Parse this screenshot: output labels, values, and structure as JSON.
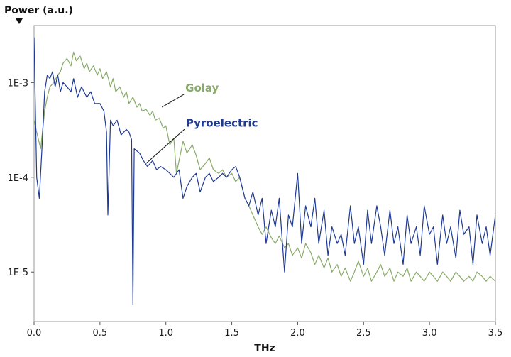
{
  "chart_data": {
    "type": "line",
    "title": "",
    "xlabel": "THz",
    "ylabel": "Power (a.u.)",
    "xlim": [
      0,
      3.5
    ],
    "ylim": [
      3e-06,
      0.004
    ],
    "yscale": "log",
    "x_ticks": [
      0.0,
      0.5,
      1.0,
      1.5,
      2.0,
      2.5,
      3.0,
      3.5
    ],
    "x_tick_labels": [
      "0.0",
      "0.5",
      "1.0",
      "1.5",
      "2.0",
      "2.5",
      "3.0",
      "3.5"
    ],
    "y_ticks": [
      1e-05,
      0.0001,
      0.001
    ],
    "y_tick_labels": [
      "1E-5",
      "1E-4",
      "1E-3"
    ],
    "grid": false,
    "legend": "annotations",
    "series": [
      {
        "name": "Golay",
        "color": "#88aa68",
        "label_anchor": [
          0.97,
          0.00055
        ],
        "x": [
          0.0,
          0.02,
          0.05,
          0.08,
          0.1,
          0.12,
          0.15,
          0.18,
          0.2,
          0.22,
          0.25,
          0.28,
          0.3,
          0.32,
          0.35,
          0.38,
          0.4,
          0.42,
          0.45,
          0.48,
          0.5,
          0.52,
          0.55,
          0.58,
          0.6,
          0.62,
          0.65,
          0.68,
          0.7,
          0.72,
          0.75,
          0.78,
          0.8,
          0.82,
          0.85,
          0.88,
          0.9,
          0.92,
          0.95,
          0.98,
          1.0,
          1.03,
          1.06,
          1.08,
          1.1,
          1.13,
          1.16,
          1.2,
          1.23,
          1.26,
          1.3,
          1.33,
          1.36,
          1.4,
          1.43,
          1.46,
          1.5,
          1.53,
          1.56,
          1.6,
          1.63,
          1.66,
          1.7,
          1.73,
          1.76,
          1.8,
          1.83,
          1.86,
          1.9,
          1.93,
          1.96,
          2.0,
          2.03,
          2.06,
          2.1,
          2.13,
          2.16,
          2.2,
          2.23,
          2.26,
          2.3,
          2.33,
          2.36,
          2.4,
          2.43,
          2.46,
          2.5,
          2.53,
          2.56,
          2.6,
          2.63,
          2.66,
          2.7,
          2.73,
          2.76,
          2.8,
          2.83,
          2.86,
          2.9,
          2.93,
          2.96,
          3.0,
          3.03,
          3.06,
          3.1,
          3.13,
          3.16,
          3.2,
          3.23,
          3.26,
          3.3,
          3.33,
          3.36,
          3.4,
          3.43,
          3.46,
          3.5
        ],
        "values": [
          0.0004,
          0.0003,
          0.0002,
          0.0005,
          0.0007,
          0.0009,
          0.001,
          0.0012,
          0.0013,
          0.0016,
          0.0018,
          0.0015,
          0.0021,
          0.0017,
          0.0019,
          0.0014,
          0.0016,
          0.0013,
          0.0015,
          0.0012,
          0.0014,
          0.0011,
          0.0013,
          0.0009,
          0.0011,
          0.0008,
          0.0009,
          0.0007,
          0.0008,
          0.0006,
          0.0007,
          0.00055,
          0.0006,
          0.0005,
          0.00052,
          0.00045,
          0.0005,
          0.0004,
          0.00042,
          0.00033,
          0.00035,
          0.00022,
          0.00026,
          0.00011,
          0.00015,
          0.00024,
          0.00018,
          0.00022,
          0.00017,
          0.00012,
          0.00014,
          0.00016,
          0.00012,
          0.00011,
          0.00012,
          0.0001,
          0.00011,
          9e-05,
          0.0001,
          6e-05,
          5e-05,
          4e-05,
          3e-05,
          2.5e-05,
          3e-05,
          2.3e-05,
          2e-05,
          2.4e-05,
          1.8e-05,
          2e-05,
          1.5e-05,
          1.8e-05,
          1.4e-05,
          2e-05,
          1.6e-05,
          1.2e-05,
          1.5e-05,
          1.1e-05,
          1.4e-05,
          1e-05,
          1.2e-05,
          9e-06,
          1.1e-05,
          8e-06,
          1e-05,
          1.3e-05,
          9e-06,
          1.1e-05,
          8e-06,
          1e-05,
          1.2e-05,
          9e-06,
          1.1e-05,
          8e-06,
          1e-05,
          9e-06,
          1.1e-05,
          8e-06,
          1e-05,
          9e-06,
          8e-06,
          1e-05,
          9e-06,
          8e-06,
          1e-05,
          9e-06,
          8e-06,
          1e-05,
          9e-06,
          8e-06,
          9e-06,
          8e-06,
          1e-05,
          9e-06,
          8e-06,
          9e-06,
          8e-06
        ]
      },
      {
        "name": "Pyroelectric",
        "color": "#1f3a93",
        "label_anchor": [
          0.85,
          0.00014
        ],
        "x": [
          0.0,
          0.02,
          0.04,
          0.06,
          0.08,
          0.1,
          0.12,
          0.14,
          0.16,
          0.18,
          0.2,
          0.22,
          0.25,
          0.28,
          0.3,
          0.33,
          0.36,
          0.4,
          0.43,
          0.46,
          0.5,
          0.53,
          0.55,
          0.56,
          0.58,
          0.6,
          0.63,
          0.66,
          0.7,
          0.72,
          0.74,
          0.75,
          0.76,
          0.8,
          0.83,
          0.86,
          0.9,
          0.93,
          0.96,
          1.0,
          1.03,
          1.06,
          1.1,
          1.13,
          1.16,
          1.2,
          1.23,
          1.26,
          1.3,
          1.33,
          1.36,
          1.4,
          1.43,
          1.46,
          1.5,
          1.53,
          1.56,
          1.6,
          1.63,
          1.66,
          1.7,
          1.73,
          1.76,
          1.8,
          1.83,
          1.86,
          1.9,
          1.93,
          1.96,
          2.0,
          2.03,
          2.06,
          2.1,
          2.13,
          2.16,
          2.2,
          2.23,
          2.26,
          2.3,
          2.33,
          2.36,
          2.4,
          2.43,
          2.46,
          2.5,
          2.53,
          2.56,
          2.6,
          2.63,
          2.66,
          2.7,
          2.73,
          2.76,
          2.8,
          2.83,
          2.86,
          2.9,
          2.93,
          2.96,
          3.0,
          3.03,
          3.06,
          3.1,
          3.13,
          3.16,
          3.2,
          3.23,
          3.26,
          3.3,
          3.33,
          3.36,
          3.4,
          3.43,
          3.46,
          3.5
        ],
        "values": [
          0.003,
          0.0001,
          6e-05,
          0.0002,
          0.0008,
          0.0012,
          0.0011,
          0.0013,
          0.0009,
          0.0012,
          0.0008,
          0.001,
          0.0009,
          0.0008,
          0.0011,
          0.0007,
          0.0009,
          0.0007,
          0.0008,
          0.0006,
          0.0006,
          0.0005,
          0.0003,
          4e-05,
          0.0004,
          0.00035,
          0.0004,
          0.00028,
          0.00032,
          0.0003,
          0.00025,
          4.5e-06,
          0.0002,
          0.00018,
          0.00015,
          0.00013,
          0.00015,
          0.00012,
          0.00013,
          0.00012,
          0.00011,
          0.0001,
          0.00012,
          6e-05,
          8e-05,
          0.0001,
          0.00011,
          7e-05,
          0.0001,
          0.00011,
          9e-05,
          0.0001,
          0.00011,
          0.0001,
          0.00012,
          0.00013,
          0.0001,
          6e-05,
          5e-05,
          7e-05,
          4e-05,
          6e-05,
          2e-05,
          4.5e-05,
          3e-05,
          6e-05,
          1e-05,
          4e-05,
          3e-05,
          0.00011,
          2e-05,
          5e-05,
          3e-05,
          6e-05,
          2e-05,
          4.5e-05,
          1.5e-05,
          3e-05,
          2e-05,
          2.5e-05,
          1.5e-05,
          5e-05,
          2e-05,
          3e-05,
          1.2e-05,
          4.5e-05,
          2e-05,
          5e-05,
          3e-05,
          1.5e-05,
          4.5e-05,
          2e-05,
          3e-05,
          1.2e-05,
          4e-05,
          2e-05,
          3e-05,
          1.5e-05,
          5e-05,
          2.5e-05,
          3e-05,
          1.2e-05,
          4e-05,
          2e-05,
          3e-05,
          1.4e-05,
          4.5e-05,
          2.5e-05,
          3e-05,
          1.2e-05,
          4e-05,
          2e-05,
          3e-05,
          1.5e-05,
          4e-05
        ]
      }
    ]
  }
}
